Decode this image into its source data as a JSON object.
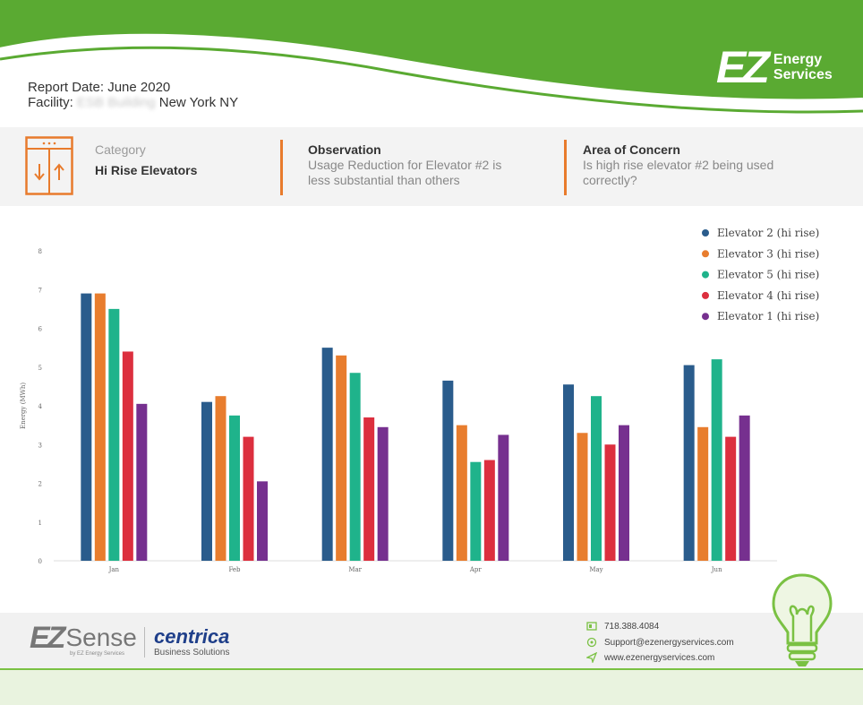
{
  "brand": {
    "logo_mark": "EZ",
    "logo_line1": "Energy",
    "logo_line2": "Services",
    "accent_green": "#5aaa32",
    "accent_orange": "#e87b2c"
  },
  "report": {
    "date_label": "Report Date: June 2020",
    "facility_label": "Facility:",
    "facility_blurred": "ESB Building",
    "facility_city": "New York NY"
  },
  "summary": {
    "category_label": "Category",
    "category_value": "Hi Rise Elevators",
    "observation_title": "Observation",
    "observation_line1": "Usage Reduction for Elevator #2 is",
    "observation_line2": "less substantial than others",
    "concern_title": "Area of Concern",
    "concern_line1": "Is high rise elevator #2 being used",
    "concern_line2": "correctly?"
  },
  "chart_data": {
    "type": "bar",
    "categories": [
      "Jan",
      "Feb",
      "Mar",
      "Apr",
      "May",
      "Jun"
    ],
    "ylabel": "Energy (MWh)",
    "ylim": [
      0,
      8
    ],
    "yticks": [
      0,
      1,
      2,
      3,
      4,
      5,
      6,
      7,
      8
    ],
    "legend_position": "top-right",
    "series": [
      {
        "name": "Elevator 2 (hi rise)",
        "color": "#2a5c8c",
        "values": [
          6.9,
          4.1,
          5.5,
          4.65,
          4.55,
          5.05
        ]
      },
      {
        "name": "Elevator 3 (hi rise)",
        "color": "#e87d2e",
        "values": [
          6.9,
          4.25,
          5.3,
          3.5,
          3.3,
          3.45
        ]
      },
      {
        "name": "Elevator 5 (hi rise)",
        "color": "#1fb38b",
        "values": [
          6.5,
          3.75,
          4.85,
          2.55,
          4.25,
          5.2
        ]
      },
      {
        "name": "Elevator 4 (hi rise)",
        "color": "#dc2f3e",
        "values": [
          5.4,
          3.2,
          3.7,
          2.6,
          3.0,
          3.2
        ]
      },
      {
        "name": "Elevator 1 (hi rise)",
        "color": "#76308f",
        "values": [
          4.05,
          2.05,
          3.45,
          3.25,
          3.5,
          3.75
        ]
      }
    ]
  },
  "footer": {
    "ezsense_mark": "EZ",
    "ezsense_word": "Sense",
    "ezsense_sub": "by EZ Energy Services",
    "centrica_name": "centrica",
    "centrica_sub": "Business Solutions",
    "phone": "718.388.4084",
    "email": "Support@ezenergyservices.com",
    "website": "www.ezenergyservices.com"
  },
  "icons": [
    "elevator-icon",
    "phone-icon",
    "email-icon",
    "web-icon",
    "lightbulb-icon"
  ]
}
